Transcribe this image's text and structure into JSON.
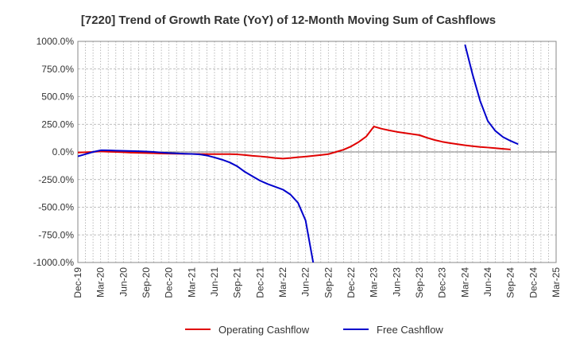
{
  "chart_data": {
    "type": "line",
    "title": "[7220]  Trend of Growth Rate (YoY) of 12-Month Moving Sum of Cashflows",
    "xlabel": "",
    "ylabel": "",
    "ylim": [
      -1000,
      1000
    ],
    "yticks": [
      1000,
      750,
      500,
      250,
      0,
      -250,
      -500,
      -750,
      -1000
    ],
    "ytick_labels": [
      "1000.0%",
      "750.0%",
      "500.0%",
      "250.0%",
      "0.0%",
      "-250.0%",
      "-500.0%",
      "-750.0%",
      "-1000.0%"
    ],
    "x_start": "Dec-19",
    "x_end": "Mar-25",
    "xtick_labels": [
      "Dec-19",
      "Mar-20",
      "Jun-20",
      "Sep-20",
      "Dec-20",
      "Mar-21",
      "Jun-21",
      "Sep-21",
      "Dec-21",
      "Mar-22",
      "Jun-22",
      "Sep-22",
      "Dec-22",
      "Mar-23",
      "Jun-23",
      "Sep-23",
      "Dec-23",
      "Mar-24",
      "Jun-24",
      "Sep-24",
      "Dec-24",
      "Mar-25"
    ],
    "grid": true,
    "legend_position": "bottom",
    "series": [
      {
        "name": "Operating Cashflow",
        "color": "#e00000",
        "points": [
          [
            "Dec-19",
            -5
          ],
          [
            "Jan-20",
            -3
          ],
          [
            "Feb-20",
            0
          ],
          [
            "Mar-20",
            5
          ],
          [
            "Apr-20",
            2
          ],
          [
            "May-20",
            0
          ],
          [
            "Jun-20",
            -3
          ],
          [
            "Jul-20",
            -6
          ],
          [
            "Aug-20",
            -8
          ],
          [
            "Sep-20",
            -10
          ],
          [
            "Oct-20",
            -12
          ],
          [
            "Nov-20",
            -14
          ],
          [
            "Dec-20",
            -15
          ],
          [
            "Jan-21",
            -16
          ],
          [
            "Feb-21",
            -17
          ],
          [
            "Mar-21",
            -18
          ],
          [
            "Apr-21",
            -19
          ],
          [
            "May-21",
            -20
          ],
          [
            "Jun-21",
            -20
          ],
          [
            "Jul-21",
            -20
          ],
          [
            "Aug-21",
            -20
          ],
          [
            "Sep-21",
            -22
          ],
          [
            "Oct-21",
            -28
          ],
          [
            "Nov-21",
            -35
          ],
          [
            "Dec-21",
            -40
          ],
          [
            "Jan-22",
            -47
          ],
          [
            "Feb-22",
            -55
          ],
          [
            "Mar-22",
            -60
          ],
          [
            "Apr-22",
            -55
          ],
          [
            "May-22",
            -48
          ],
          [
            "Jun-22",
            -42
          ],
          [
            "Jul-22",
            -35
          ],
          [
            "Aug-22",
            -28
          ],
          [
            "Sep-22",
            -20
          ],
          [
            "Oct-22",
            0
          ],
          [
            "Nov-22",
            20
          ],
          [
            "Dec-22",
            50
          ],
          [
            "Jan-23",
            90
          ],
          [
            "Feb-23",
            140
          ],
          [
            "Mar-23",
            230
          ],
          [
            "Apr-23",
            210
          ],
          [
            "May-23",
            195
          ],
          [
            "Jun-23",
            182
          ],
          [
            "Jul-23",
            172
          ],
          [
            "Aug-23",
            162
          ],
          [
            "Sep-23",
            152
          ],
          [
            "Oct-23",
            128
          ],
          [
            "Nov-23",
            108
          ],
          [
            "Dec-23",
            92
          ],
          [
            "Jan-24",
            80
          ],
          [
            "Feb-24",
            70
          ],
          [
            "Mar-24",
            60
          ],
          [
            "Apr-24",
            52
          ],
          [
            "May-24",
            45
          ],
          [
            "Jun-24",
            40
          ],
          [
            "Jul-24",
            34
          ],
          [
            "Aug-24",
            28
          ],
          [
            "Sep-24",
            22
          ]
        ]
      },
      {
        "name": "Free Cashflow",
        "color": "#0000cc",
        "points": [
          [
            "Dec-19",
            -40
          ],
          [
            "Jan-20",
            -20
          ],
          [
            "Feb-20",
            0
          ],
          [
            "Mar-20",
            15
          ],
          [
            "Apr-20",
            14
          ],
          [
            "May-20",
            12
          ],
          [
            "Jun-20",
            10
          ],
          [
            "Jul-20",
            8
          ],
          [
            "Aug-20",
            6
          ],
          [
            "Sep-20",
            4
          ],
          [
            "Oct-20",
            0
          ],
          [
            "Nov-20",
            -5
          ],
          [
            "Dec-20",
            -10
          ],
          [
            "Jan-21",
            -13
          ],
          [
            "Feb-21",
            -16
          ],
          [
            "Mar-21",
            -18
          ],
          [
            "Apr-21",
            -22
          ],
          [
            "May-21",
            -32
          ],
          [
            "Jun-21",
            -50
          ],
          [
            "Jul-21",
            -70
          ],
          [
            "Aug-21",
            -95
          ],
          [
            "Sep-21",
            -130
          ],
          [
            "Oct-21",
            -180
          ],
          [
            "Nov-21",
            -220
          ],
          [
            "Dec-21",
            -260
          ],
          [
            "Jan-22",
            -290
          ],
          [
            "Feb-22",
            -315
          ],
          [
            "Mar-22",
            -340
          ],
          [
            "Apr-22",
            -385
          ],
          [
            "May-22",
            -460
          ],
          [
            "Jun-22",
            -620
          ],
          [
            "Jul-22",
            -1000
          ]
        ],
        "points_2": [
          [
            "Mar-24",
            970
          ],
          [
            "Apr-24",
            700
          ],
          [
            "May-24",
            460
          ],
          [
            "Jun-24",
            280
          ],
          [
            "Jul-24",
            190
          ],
          [
            "Aug-24",
            135
          ],
          [
            "Sep-24",
            100
          ],
          [
            "Oct-24",
            70
          ]
        ]
      }
    ]
  }
}
